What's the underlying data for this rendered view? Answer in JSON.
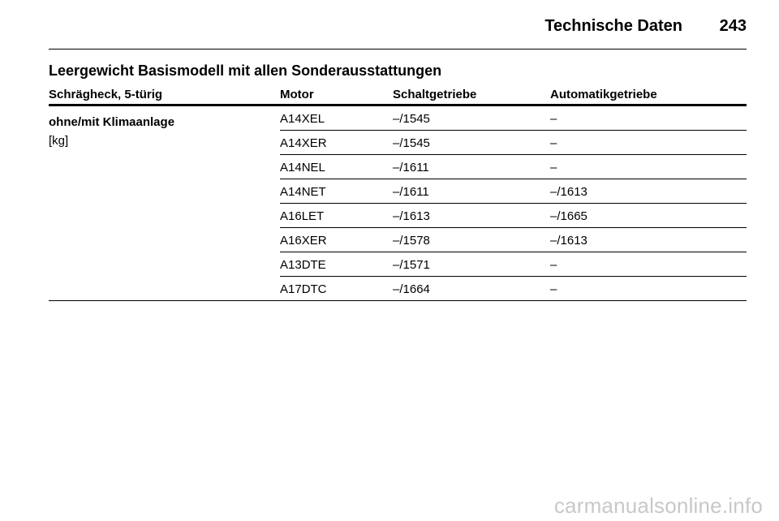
{
  "header": {
    "title": "Technische Daten",
    "page_number": "243"
  },
  "section": {
    "title": "Leergewicht Basismodell mit allen Sonderausstattungen"
  },
  "table": {
    "columns": [
      "Schrägheck, 5-türig",
      "Motor",
      "Schaltgetriebe",
      "Automatikgetriebe"
    ],
    "row_label": "ohne/mit Klimaanlage",
    "row_unit": "[kg]",
    "rows": [
      {
        "motor": "A14XEL",
        "manual": "–/1545",
        "automatic": "–"
      },
      {
        "motor": "A14XER",
        "manual": "–/1545",
        "automatic": "–"
      },
      {
        "motor": "A14NEL",
        "manual": "–/1611",
        "automatic": "–"
      },
      {
        "motor": "A14NET",
        "manual": "–/1611",
        "automatic": "–/1613"
      },
      {
        "motor": "A16LET",
        "manual": "–/1613",
        "automatic": "–/1665"
      },
      {
        "motor": "A16XER",
        "manual": "–/1578",
        "automatic": "–/1613"
      },
      {
        "motor": "A13DTE",
        "manual": "–/1571",
        "automatic": "–"
      },
      {
        "motor": "A17DTC",
        "manual": "–/1664",
        "automatic": "–"
      }
    ]
  },
  "watermark": "carmanualsonline.info"
}
